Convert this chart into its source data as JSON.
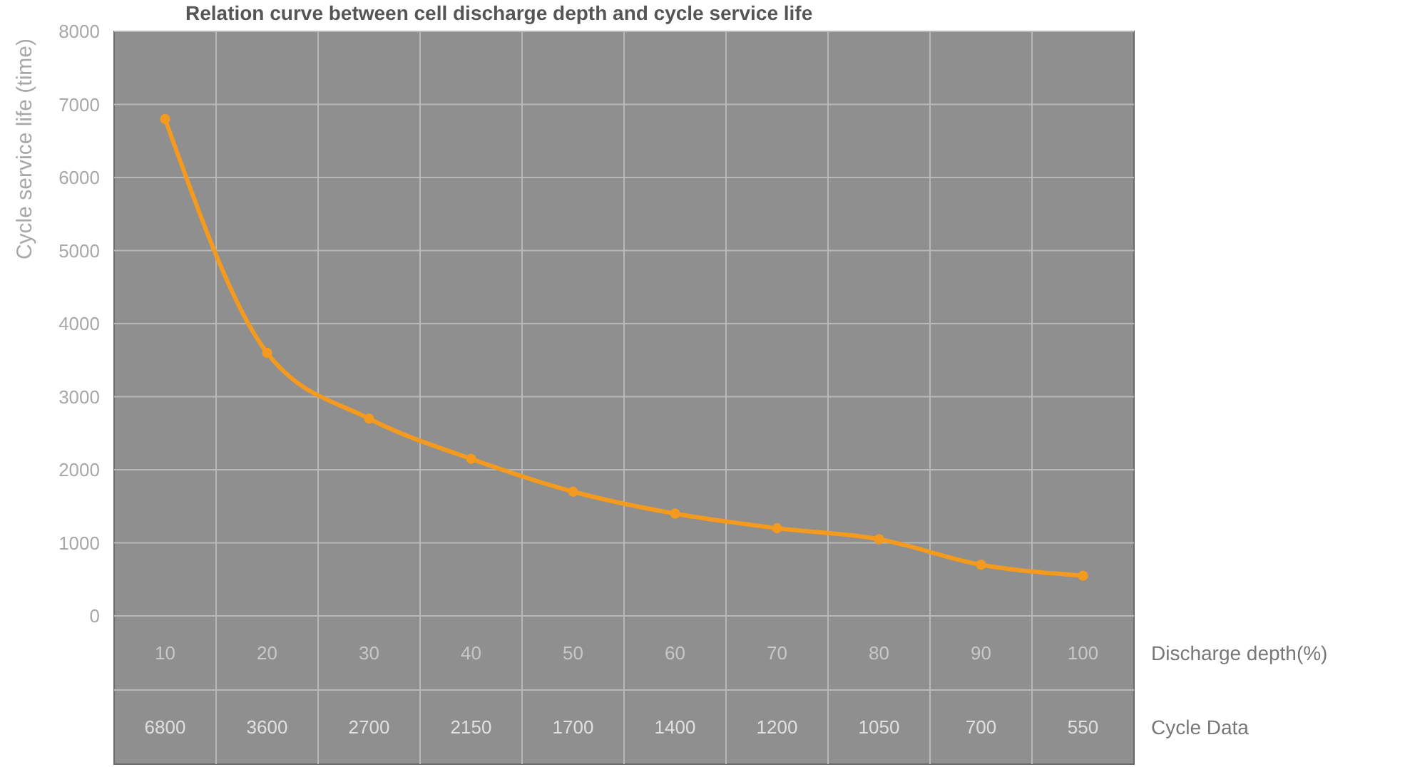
{
  "chart_data": {
    "type": "line",
    "title": "Relation curve between cell discharge depth and cycle service life",
    "xlabel": "Discharge depth(%)",
    "ylabel": "Cycle service life (time)",
    "annotations": [
      "Cycle Data"
    ],
    "categories": [
      "10",
      "20",
      "30",
      "40",
      "50",
      "60",
      "70",
      "80",
      "90",
      "100"
    ],
    "series": [
      {
        "color": "#f39a1f",
        "values": [
          6800,
          3600,
          2700,
          2150,
          1700,
          1400,
          1200,
          1050,
          700,
          550
        ]
      }
    ],
    "ylim": [
      0,
      8000
    ],
    "yticks": [
      0,
      1000,
      2000,
      3000,
      4000,
      5000,
      6000,
      7000,
      8000
    ],
    "grid": true,
    "marker": "circle",
    "line_style": "solid",
    "data_labels": true
  }
}
